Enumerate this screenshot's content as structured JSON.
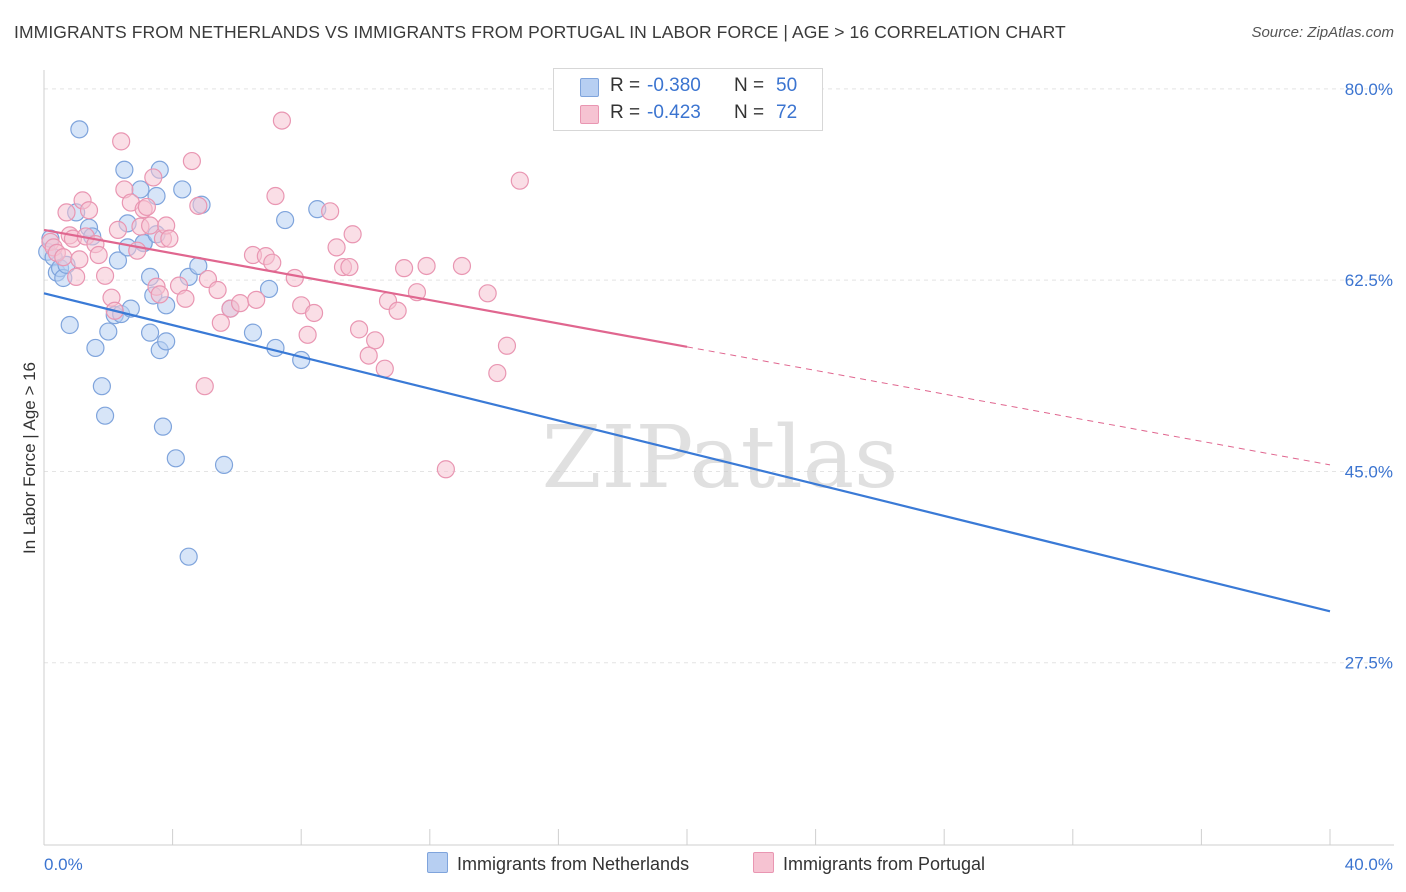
{
  "title": "IMMIGRANTS FROM NETHERLANDS VS IMMIGRANTS FROM PORTUGAL IN LABOR FORCE | AGE > 16 CORRELATION CHART",
  "source": "Source: ZipAtlas.com",
  "watermark": "ZIPatlas",
  "colors": {
    "netherlands_fill": "#b7cff2",
    "netherlands_stroke": "#7fa4dc",
    "netherlands_line": "#3a7ad6",
    "portugal_fill": "#f6c3d2",
    "portugal_stroke": "#e996b2",
    "portugal_line": "#e0668f",
    "tick_text": "#3b74d0"
  },
  "stats": [
    {
      "r_label": "R = ",
      "r_value": "-0.380",
      "n_label": "N = ",
      "n_value": "50"
    },
    {
      "r_label": "R = ",
      "r_value": "-0.423",
      "n_label": "N = ",
      "n_value": "72"
    }
  ],
  "legend": [
    "Immigrants from Netherlands",
    "Immigrants from Portugal"
  ],
  "chart_data": {
    "type": "scatter",
    "title": "IMMIGRANTS FROM NETHERLANDS VS IMMIGRANTS FROM PORTUGAL IN LABOR FORCE | AGE > 16 CORRELATION CHART",
    "xlabel": "",
    "ylabel": "In Labor Force | Age > 16",
    "xlim": [
      0,
      40
    ],
    "ylim": [
      10,
      83
    ],
    "x_tick_labels": [
      "0.0%",
      "40.0%"
    ],
    "y_ticks": [
      80.0,
      62.5,
      45.0,
      27.5
    ],
    "y_tick_labels": [
      "80.0%",
      "62.5%",
      "45.0%",
      "27.5%"
    ],
    "grid": true,
    "legend_position": "bottom",
    "series": [
      {
        "name": "Immigrants from Netherlands",
        "points": [
          [
            0.1,
            65.1
          ],
          [
            0.2,
            66.3
          ],
          [
            0.3,
            64.6
          ],
          [
            0.4,
            63.2
          ],
          [
            0.5,
            63.6
          ],
          [
            0.6,
            62.7
          ],
          [
            0.7,
            63.9
          ],
          [
            0.8,
            58.4
          ],
          [
            1.0,
            68.7
          ],
          [
            1.1,
            76.3
          ],
          [
            1.4,
            67.3
          ],
          [
            1.5,
            66.5
          ],
          [
            1.6,
            56.3
          ],
          [
            1.8,
            52.8
          ],
          [
            1.9,
            50.1
          ],
          [
            2.0,
            57.8
          ],
          [
            2.2,
            59.3
          ],
          [
            2.3,
            64.3
          ],
          [
            2.4,
            59.4
          ],
          [
            2.5,
            72.6
          ],
          [
            2.6,
            67.7
          ],
          [
            2.6,
            65.5
          ],
          [
            2.7,
            59.9
          ],
          [
            3.0,
            70.8
          ],
          [
            3.1,
            65.9
          ],
          [
            3.1,
            65.9
          ],
          [
            3.3,
            62.8
          ],
          [
            3.3,
            57.7
          ],
          [
            3.4,
            61.1
          ],
          [
            3.5,
            66.7
          ],
          [
            3.5,
            70.2
          ],
          [
            3.6,
            56.1
          ],
          [
            3.6,
            72.6
          ],
          [
            3.7,
            49.1
          ],
          [
            3.8,
            60.2
          ],
          [
            3.8,
            56.9
          ],
          [
            4.1,
            46.2
          ],
          [
            4.3,
            70.8
          ],
          [
            4.5,
            62.8
          ],
          [
            4.5,
            37.2
          ],
          [
            4.8,
            63.8
          ],
          [
            4.9,
            69.4
          ],
          [
            5.6,
            45.6
          ],
          [
            5.8,
            59.9
          ],
          [
            6.5,
            57.7
          ],
          [
            7.0,
            61.7
          ],
          [
            7.2,
            56.3
          ],
          [
            7.5,
            68.0
          ],
          [
            8.0,
            55.2
          ],
          [
            8.5,
            69.0
          ]
        ]
      },
      {
        "name": "Immigrants from Portugal",
        "points": [
          [
            0.2,
            66.0
          ],
          [
            0.3,
            65.5
          ],
          [
            0.4,
            65.0
          ],
          [
            0.6,
            64.6
          ],
          [
            0.7,
            68.7
          ],
          [
            0.8,
            66.6
          ],
          [
            0.9,
            66.3
          ],
          [
            1.0,
            62.8
          ],
          [
            1.1,
            64.4
          ],
          [
            1.2,
            69.8
          ],
          [
            1.3,
            66.5
          ],
          [
            1.4,
            68.9
          ],
          [
            1.6,
            65.8
          ],
          [
            1.7,
            64.8
          ],
          [
            1.9,
            62.9
          ],
          [
            2.1,
            60.9
          ],
          [
            2.2,
            59.7
          ],
          [
            2.3,
            67.1
          ],
          [
            2.4,
            75.2
          ],
          [
            2.5,
            70.8
          ],
          [
            2.7,
            69.6
          ],
          [
            2.9,
            65.2
          ],
          [
            3.0,
            67.4
          ],
          [
            3.1,
            69.0
          ],
          [
            3.2,
            69.2
          ],
          [
            3.3,
            67.5
          ],
          [
            3.4,
            71.9
          ],
          [
            3.5,
            61.9
          ],
          [
            3.6,
            61.2
          ],
          [
            3.7,
            66.3
          ],
          [
            3.8,
            67.5
          ],
          [
            3.9,
            66.3
          ],
          [
            4.2,
            62.0
          ],
          [
            4.4,
            60.8
          ],
          [
            4.6,
            73.4
          ],
          [
            4.8,
            69.3
          ],
          [
            5.0,
            52.8
          ],
          [
            5.1,
            62.6
          ],
          [
            5.4,
            61.6
          ],
          [
            5.5,
            58.6
          ],
          [
            5.8,
            59.9
          ],
          [
            6.1,
            60.4
          ],
          [
            6.5,
            64.8
          ],
          [
            6.6,
            60.7
          ],
          [
            6.9,
            64.7
          ],
          [
            7.1,
            64.1
          ],
          [
            7.2,
            70.2
          ],
          [
            7.4,
            77.1
          ],
          [
            7.8,
            62.7
          ],
          [
            8.0,
            60.2
          ],
          [
            8.2,
            57.5
          ],
          [
            8.4,
            59.5
          ],
          [
            8.9,
            68.8
          ],
          [
            9.1,
            65.5
          ],
          [
            9.3,
            63.7
          ],
          [
            9.5,
            63.7
          ],
          [
            9.6,
            66.7
          ],
          [
            9.8,
            58.0
          ],
          [
            10.1,
            55.6
          ],
          [
            10.3,
            57.0
          ],
          [
            10.6,
            54.4
          ],
          [
            10.7,
            60.6
          ],
          [
            11.0,
            59.7
          ],
          [
            11.2,
            63.6
          ],
          [
            11.6,
            61.4
          ],
          [
            11.9,
            63.8
          ],
          [
            12.5,
            45.2
          ],
          [
            13.0,
            63.8
          ],
          [
            13.8,
            61.3
          ],
          [
            14.1,
            54.0
          ],
          [
            14.4,
            56.5
          ],
          [
            14.8,
            71.6
          ]
        ]
      }
    ],
    "trend_lines": [
      {
        "name": "Immigrants from Netherlands",
        "x0": 0,
        "y0": 61.3,
        "x1": 40,
        "y1": 32.2
      },
      {
        "name": "Immigrants from Portugal",
        "x0": 0,
        "y0": 67.1,
        "x1": 20,
        "y1": 56.4,
        "dashed_to_x": 40,
        "dashed_to_y": 45.6
      }
    ]
  }
}
